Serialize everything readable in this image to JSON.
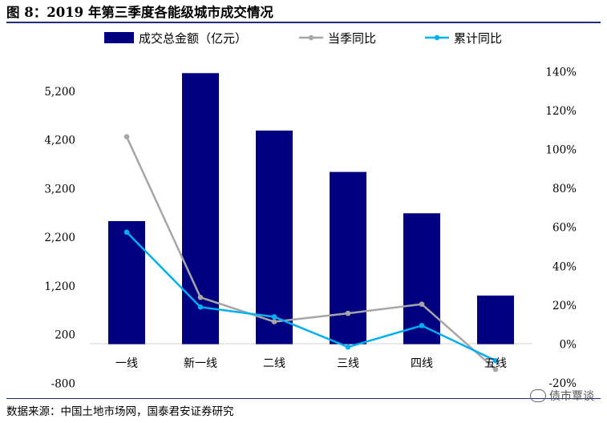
{
  "title": "图 8：2019 年第三季度各能级城市成交情况",
  "source": "数据来源：中国土地市场网，国泰君安证券研究",
  "watermark": "债市覃谈",
  "colors": {
    "bar": "#000080",
    "seasonal": "#a6a6a6",
    "cumulative": "#00b0f0",
    "rule": "#1e2f7a"
  },
  "chart_data": {
    "type": "bar",
    "categories": [
      "一线",
      "新一线",
      "二线",
      "三线",
      "四线",
      "五线"
    ],
    "series": [
      {
        "name": "成交总金额（亿元）",
        "type": "bar",
        "axis": "left",
        "values": [
          2530,
          5570,
          4390,
          3540,
          2690,
          1000
        ]
      },
      {
        "name": "当季同比",
        "type": "line",
        "axis": "right",
        "values": [
          106.5,
          24,
          11.5,
          15.8,
          20.5,
          -13
        ]
      },
      {
        "name": "累计同比",
        "type": "line",
        "axis": "right",
        "values": [
          57.5,
          19,
          14,
          -1.5,
          9.5,
          -8.5
        ]
      }
    ],
    "yleft": {
      "range": [
        -800,
        6200
      ],
      "ticks": [
        -800,
        200,
        1200,
        2200,
        3200,
        4200,
        5200
      ],
      "tick_labels": [
        "-800",
        "200",
        "1,200",
        "2,200",
        "3,200",
        "4,200",
        "5,200"
      ]
    },
    "yright": {
      "range": [
        -20,
        140
      ],
      "ticks": [
        -20,
        0,
        20,
        40,
        60,
        80,
        100,
        120,
        140
      ],
      "tick_labels": [
        "-20%",
        "0%",
        "20%",
        "40%",
        "60%",
        "80%",
        "100%",
        "120%",
        "140%"
      ]
    },
    "legend": "top",
    "grid": false
  }
}
